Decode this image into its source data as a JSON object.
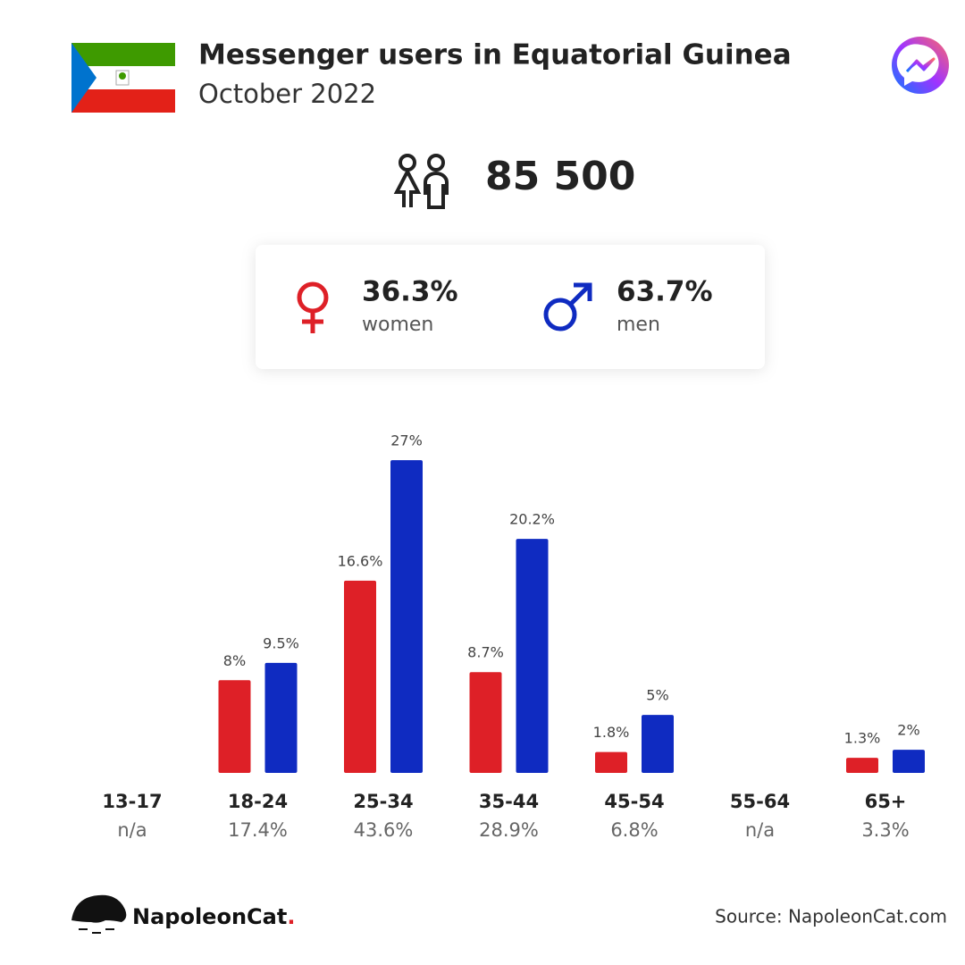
{
  "chart_data": {
    "type": "bar",
    "title": "Messenger users in Equatorial Guinea",
    "subtitle": "October 2022",
    "total_users": "85 500",
    "women_share": "36.3%",
    "women_label": "women",
    "men_share": "63.7%",
    "men_label": "men",
    "categories": [
      "13-17",
      "18-24",
      "25-34",
      "35-44",
      "45-54",
      "55-64",
      "65+"
    ],
    "category_totals": [
      "n/a",
      "17.4%",
      "43.6%",
      "28.9%",
      "6.8%",
      "n/a",
      "3.3%"
    ],
    "series": [
      {
        "name": "women",
        "color": "#de2027",
        "values": [
          null,
          8,
          16.6,
          8.7,
          1.8,
          null,
          1.3
        ],
        "value_labels": [
          null,
          "8%",
          "16.6%",
          "8.7%",
          "1.8%",
          null,
          "1.3%"
        ]
      },
      {
        "name": "men",
        "color": "#0f2bc1",
        "values": [
          null,
          9.5,
          27,
          20.2,
          5,
          null,
          2
        ],
        "value_labels": [
          null,
          "9.5%",
          "27%",
          "20.2%",
          "5%",
          null,
          "2%"
        ]
      }
    ],
    "brand": "NapoleonCat",
    "brand_dot": ".",
    "source": "Source: NapoleonCat.com"
  }
}
